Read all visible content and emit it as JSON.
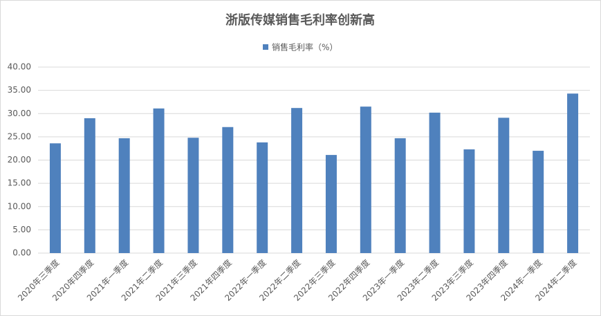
{
  "chart_data": {
    "type": "bar",
    "title": "浙版传媒销售毛利率创新高",
    "categories": [
      "2020年三季度",
      "2020年四季度",
      "2021年一季度",
      "2021年二季度",
      "2021年三季度",
      "2021年四季度",
      "2022年一季度",
      "2022年二季度",
      "2022年三季度",
      "2022年四季度",
      "2023年一季度",
      "2023年二季度",
      "2023年三季度",
      "2023年四季度",
      "2024年一季度",
      "2024年二季度"
    ],
    "series": [
      {
        "name": "销售毛利率（%）",
        "color": "#4f81bd",
        "values": [
          23.6,
          29.0,
          24.7,
          31.1,
          24.8,
          27.1,
          23.8,
          31.2,
          21.1,
          31.5,
          24.7,
          30.2,
          22.3,
          29.1,
          22.0,
          34.3
        ]
      }
    ],
    "ylim": [
      0,
      40
    ],
    "yticks": [
      {
        "value": 0,
        "label": "0.00"
      },
      {
        "value": 5,
        "label": "5.00"
      },
      {
        "value": 10,
        "label": "10.00"
      },
      {
        "value": 15,
        "label": "15.00"
      },
      {
        "value": 20,
        "label": "20.00"
      },
      {
        "value": 25,
        "label": "25.00"
      },
      {
        "value": 30,
        "label": "30.00"
      },
      {
        "value": 35,
        "label": "35.00"
      },
      {
        "value": 40,
        "label": "40.00"
      }
    ],
    "grid": true,
    "legend": "top"
  }
}
